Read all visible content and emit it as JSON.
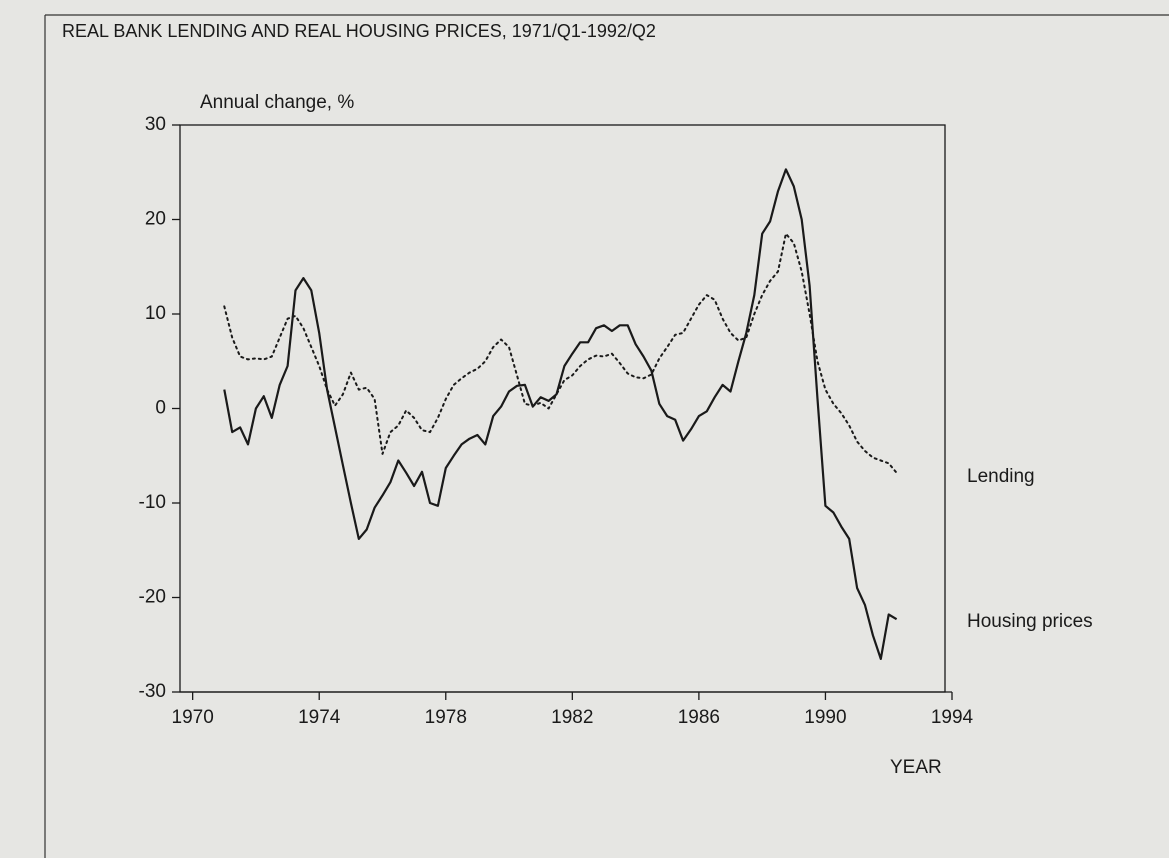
{
  "chart_data": {
    "type": "line",
    "title": "REAL BANK LENDING AND REAL HOUSING PRICES, 1971/Q1-1992/Q2",
    "y_label": "Annual change, %",
    "x_label": "YEAR",
    "x": [
      1971.0,
      1971.25,
      1971.5,
      1971.75,
      1972.0,
      1972.25,
      1972.5,
      1972.75,
      1973.0,
      1973.25,
      1973.5,
      1973.75,
      1974.0,
      1974.25,
      1974.5,
      1974.75,
      1975.0,
      1975.25,
      1975.5,
      1975.75,
      1976.0,
      1976.25,
      1976.5,
      1976.75,
      1977.0,
      1977.25,
      1977.5,
      1977.75,
      1978.0,
      1978.25,
      1978.5,
      1978.75,
      1979.0,
      1979.25,
      1979.5,
      1979.75,
      1980.0,
      1980.25,
      1980.5,
      1980.75,
      1981.0,
      1981.25,
      1981.5,
      1981.75,
      1982.0,
      1982.25,
      1982.5,
      1982.75,
      1983.0,
      1983.25,
      1983.5,
      1983.75,
      1984.0,
      1984.25,
      1984.5,
      1984.75,
      1985.0,
      1985.25,
      1985.5,
      1985.75,
      1986.0,
      1986.25,
      1986.5,
      1986.75,
      1987.0,
      1987.25,
      1987.5,
      1987.75,
      1988.0,
      1988.25,
      1988.5,
      1988.75,
      1989.0,
      1989.25,
      1989.5,
      1989.75,
      1990.0,
      1990.25,
      1990.5,
      1990.75,
      1991.0,
      1991.25,
      1991.5,
      1991.75,
      1992.0,
      1992.25
    ],
    "series": [
      {
        "name": "Lending",
        "color": "#1a1a1a",
        "style": "dotted",
        "values": [
          10.8,
          7.5,
          5.5,
          5.2,
          5.3,
          5.2,
          5.5,
          7.5,
          9.5,
          9.8,
          8.5,
          6.5,
          4.5,
          2,
          0.3,
          1.5,
          3.8,
          2,
          2.2,
          1,
          -4.8,
          -2.5,
          -1.8,
          -0.2,
          -1,
          -2.3,
          -2.5,
          -1,
          1,
          2.5,
          3.2,
          3.8,
          4.2,
          5,
          6.5,
          7.3,
          6.5,
          3.5,
          0.5,
          0.3,
          0.6,
          0,
          1.5,
          3,
          3.5,
          4.5,
          5.2,
          5.6,
          5.5,
          5.8,
          4.8,
          3.7,
          3.3,
          3.2,
          3.6,
          5.3,
          6.5,
          7.8,
          8,
          9.5,
          11,
          12,
          11.5,
          9.5,
          8,
          7.2,
          7.5,
          10,
          12,
          13.5,
          14.5,
          18.5,
          17.5,
          14.5,
          10,
          5,
          2,
          0.5,
          -0.5,
          -1.8,
          -3.5,
          -4.5,
          -5.2,
          -5.5,
          -5.8,
          -6.8
        ]
      },
      {
        "name": "Housing prices",
        "color": "#1a1a1a",
        "style": "solid",
        "values": [
          2,
          -2.5,
          -2,
          -3.8,
          0,
          1.3,
          -1,
          2.5,
          4.5,
          12.5,
          13.8,
          12.5,
          8,
          2,
          -2,
          -6,
          -10,
          -13.8,
          -12.8,
          -10.5,
          -9.2,
          -7.8,
          -5.5,
          -6.8,
          -8.2,
          -6.7,
          -10,
          -10.3,
          -6.3,
          -5,
          -3.8,
          -3.2,
          -2.8,
          -3.8,
          -0.8,
          0.2,
          1.8,
          2.4,
          2.5,
          0.2,
          1.2,
          0.8,
          1.5,
          4.5,
          5.8,
          7,
          7,
          8.5,
          8.8,
          8.2,
          8.8,
          8.8,
          6.8,
          5.5,
          4,
          0.5,
          -0.8,
          -1.2,
          -3.4,
          -2.2,
          -0.8,
          -0.3,
          1.2,
          2.5,
          1.8,
          5,
          8,
          12,
          18.5,
          19.8,
          23,
          25.3,
          23.5,
          20,
          13,
          1,
          -10.3,
          -11,
          -12.5,
          -13.8,
          -19,
          -20.8,
          -24,
          -26.5,
          -21.8,
          -22.3
        ]
      }
    ],
    "xlim": [
      1969.6,
      1994
    ],
    "xticks": [
      1970,
      1974,
      1978,
      1982,
      1986,
      1990,
      1994
    ],
    "ylim": [
      -30,
      30
    ],
    "yticks": [
      -30,
      -20,
      -10,
      0,
      10,
      20,
      30
    ]
  }
}
